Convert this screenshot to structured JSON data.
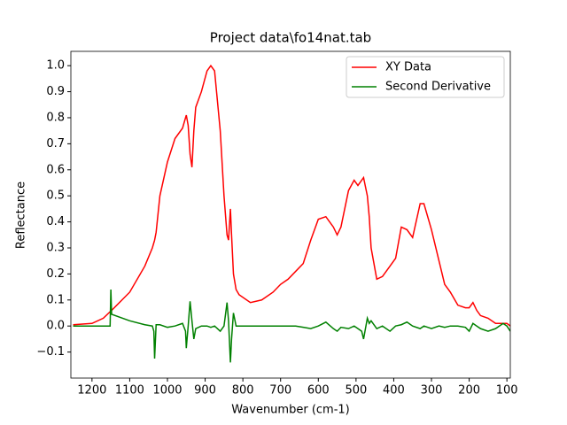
{
  "chart_data": {
    "type": "line",
    "title": "Project data\\fo14nat.tab",
    "x_label": "Wavenumber (cm-1)",
    "y_label": "Reflectance",
    "xlim": [
      1256,
      91
    ],
    "ylim": [
      -0.2,
      1.055
    ],
    "xticks": [
      1200,
      1100,
      1000,
      900,
      800,
      700,
      600,
      500,
      400,
      300,
      200,
      100
    ],
    "yticks": [
      {
        "value": -0.1,
        "label": "−0.1"
      },
      {
        "value": 0,
        "label": "0.0"
      },
      0.1,
      0.2,
      0.3,
      0.4,
      0.5,
      0.6,
      0.7,
      0.8,
      0.9,
      {
        "value": 1,
        "label": "1.0"
      }
    ],
    "legend": "upper right",
    "x": [
      1250,
      1200,
      1170,
      1152,
      1150,
      1148,
      1100,
      1060,
      1040,
      1036,
      1034,
      1030,
      1020,
      1000,
      980,
      960,
      952,
      950,
      945,
      940,
      935,
      930,
      925,
      910,
      895,
      885,
      875,
      860,
      850,
      842,
      838,
      833,
      830,
      825,
      818,
      810,
      780,
      750,
      720,
      700,
      680,
      660,
      640,
      620,
      600,
      580,
      560,
      550,
      540,
      520,
      505,
      495,
      485,
      480,
      470,
      465,
      460,
      445,
      430,
      410,
      395,
      380,
      365,
      350,
      330,
      320,
      300,
      280,
      265,
      250,
      230,
      210,
      200,
      190,
      180,
      170,
      150,
      130,
      110,
      100,
      91
    ],
    "series": [
      {
        "name": "XY Data",
        "color": "#ff0000",
        "values": [
          0.005,
          0.01,
          0.03,
          0.055,
          0.058,
          0.06,
          0.13,
          0.23,
          0.3,
          0.32,
          0.33,
          0.36,
          0.5,
          0.63,
          0.72,
          0.76,
          0.8,
          0.81,
          0.77,
          0.66,
          0.61,
          0.75,
          0.84,
          0.9,
          0.98,
          1.0,
          0.98,
          0.75,
          0.5,
          0.35,
          0.33,
          0.45,
          0.35,
          0.2,
          0.14,
          0.12,
          0.09,
          0.1,
          0.13,
          0.16,
          0.18,
          0.21,
          0.24,
          0.33,
          0.41,
          0.42,
          0.38,
          0.35,
          0.38,
          0.52,
          0.56,
          0.54,
          0.56,
          0.57,
          0.5,
          0.42,
          0.3,
          0.18,
          0.19,
          0.23,
          0.26,
          0.38,
          0.37,
          0.34,
          0.47,
          0.47,
          0.37,
          0.25,
          0.16,
          0.13,
          0.08,
          0.07,
          0.07,
          0.09,
          0.06,
          0.04,
          0.03,
          0.01,
          0.01,
          0.01,
          0.0
        ]
      },
      {
        "name": "Second Derivative",
        "color": "#008000",
        "values": [
          0,
          0,
          0,
          0,
          0.14,
          0.045,
          0.02,
          0.005,
          0.0,
          -0.02,
          -0.125,
          0.005,
          0.005,
          -0.005,
          0.0,
          0.01,
          -0.02,
          -0.085,
          0.0,
          0.095,
          0.02,
          -0.05,
          -0.01,
          0.0,
          0.0,
          -0.005,
          0.0,
          -0.02,
          0.0,
          0.09,
          0.02,
          -0.14,
          -0.05,
          0.05,
          0.0,
          0.0,
          0.0,
          0.0,
          0.0,
          0.0,
          0.0,
          0.0,
          -0.005,
          -0.01,
          0.0,
          0.015,
          -0.01,
          -0.02,
          -0.005,
          -0.01,
          0.0,
          -0.01,
          -0.02,
          -0.05,
          0.03,
          0.01,
          0.02,
          -0.01,
          0.0,
          -0.02,
          0.0,
          0.005,
          0.015,
          0.0,
          -0.01,
          0.0,
          -0.01,
          0.0,
          -0.005,
          0.0,
          0.0,
          -0.005,
          -0.02,
          0.01,
          0.0,
          -0.01,
          -0.02,
          -0.01,
          0.01,
          0.0,
          -0.02
        ]
      }
    ]
  }
}
